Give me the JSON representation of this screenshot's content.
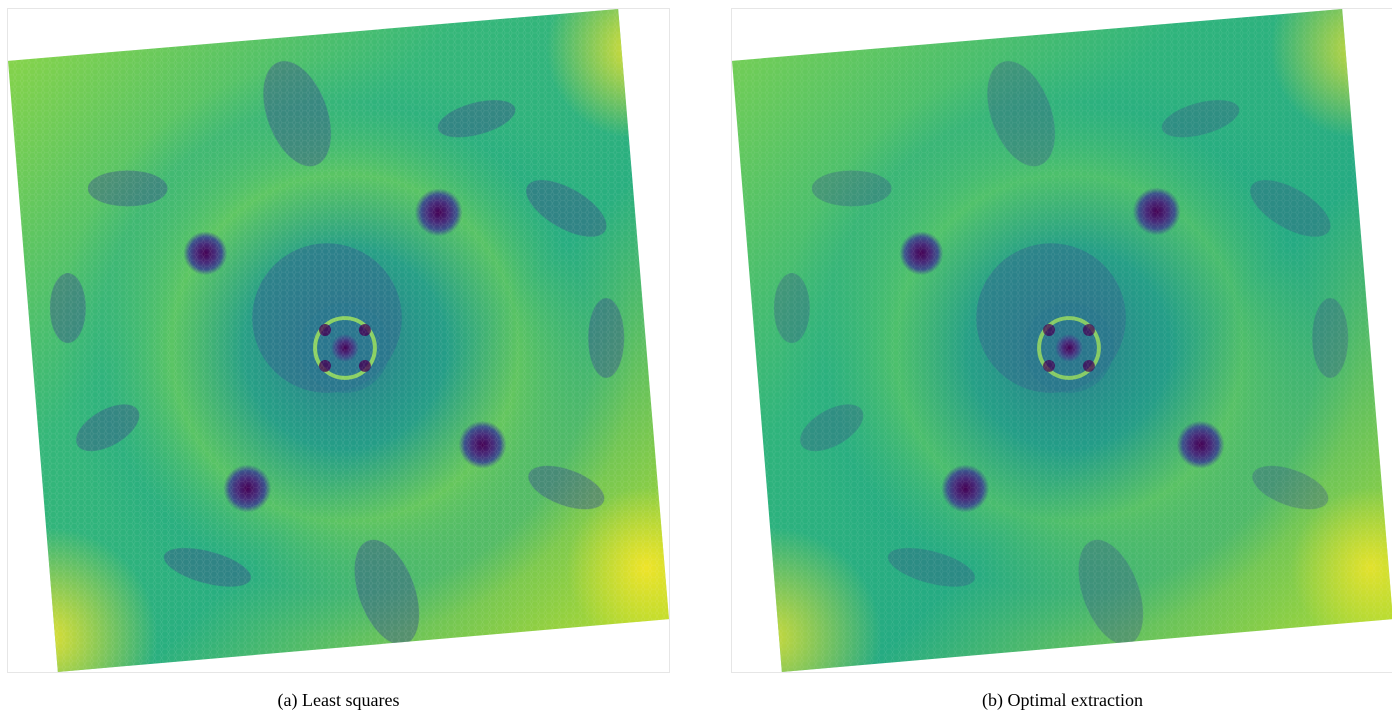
{
  "figure": {
    "panels": [
      {
        "id": "a",
        "caption": "(a) Least squares",
        "colormap": [
          "#440154",
          "#3b528b",
          "#21918c",
          "#5ec962",
          "#fde725"
        ]
      },
      {
        "id": "b",
        "caption": "(b) Optimal extraction",
        "colormap": [
          "#440154",
          "#3b528b",
          "#21918c",
          "#5ec962",
          "#fde725"
        ]
      }
    ]
  }
}
